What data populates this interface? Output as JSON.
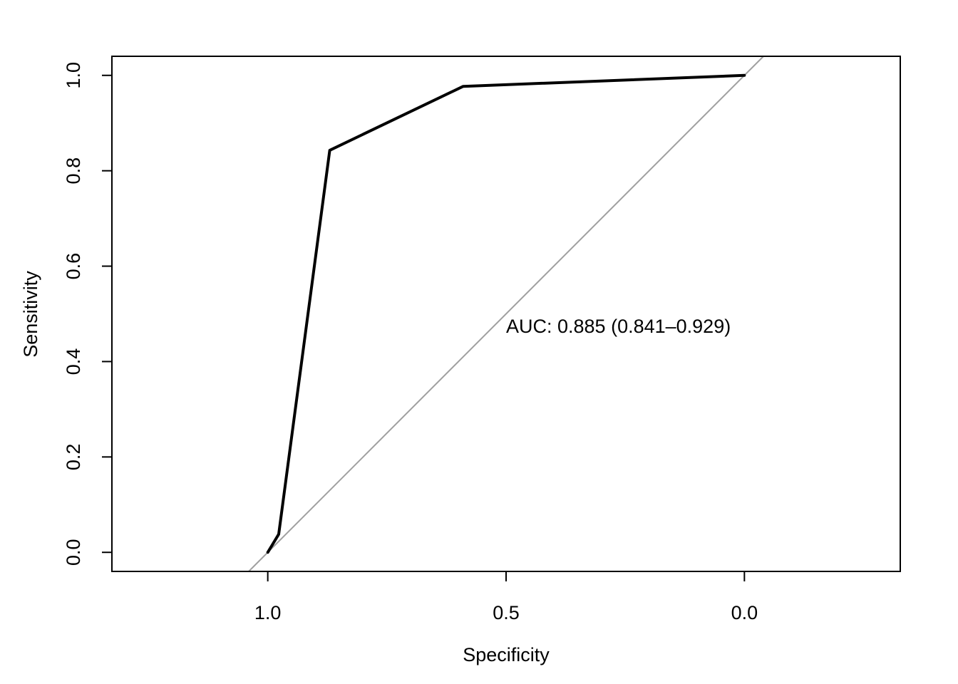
{
  "chart_data": {
    "type": "line",
    "xlabel": "Specificity",
    "ylabel": "Sensitivity",
    "x_reversed": true,
    "xlim": [
      1.327,
      -0.327
    ],
    "ylim": [
      -0.04,
      1.04
    ],
    "x_ticks": [
      1.0,
      0.5,
      0.0
    ],
    "x_tick_labels": [
      "1.0",
      "0.5",
      "0.0"
    ],
    "y_ticks": [
      0.0,
      0.2,
      0.4,
      0.6,
      0.8,
      1.0
    ],
    "y_tick_labels": [
      "0.0",
      "0.2",
      "0.4",
      "0.6",
      "0.8",
      "1.0"
    ],
    "grid": false,
    "series": [
      {
        "role": "roc-curve",
        "color": "#000000",
        "points": [
          {
            "x": 1.0,
            "y": 0.0
          },
          {
            "x": 0.977,
            "y": 0.038
          },
          {
            "x": 0.87,
            "y": 0.843
          },
          {
            "x": 0.59,
            "y": 0.977
          },
          {
            "x": 0.0,
            "y": 1.0
          }
        ]
      }
    ],
    "reference_line": {
      "role": "diagonal",
      "color": "#a0a0a0",
      "from": {
        "x": 1.0,
        "y": 0.0
      },
      "to": {
        "x": 0.0,
        "y": 1.0
      }
    },
    "annotation": {
      "text": "AUC: 0.885 (0.841–0.929)",
      "x": 0.5,
      "y": 0.475
    }
  }
}
